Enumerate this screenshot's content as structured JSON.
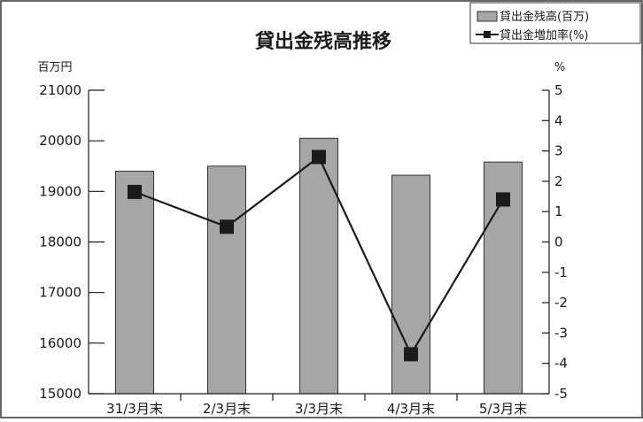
{
  "chart_data": {
    "type": "bar",
    "title": "貸出金残高推移",
    "categories": [
      "31/3月末",
      "2/3月末",
      "3/3月末",
      "4/3月末",
      "5/3月末"
    ],
    "series": [
      {
        "name": "貸出金残高(百万)",
        "type": "bar",
        "axis": "left",
        "values": [
          19400,
          19500,
          20050,
          19320,
          19580
        ],
        "color": "#a6a6a6"
      },
      {
        "name": "貸出金増加率(%)",
        "type": "line",
        "axis": "right",
        "values": [
          1.65,
          0.5,
          2.8,
          -3.7,
          1.4
        ],
        "color": "#1a1a1a"
      }
    ],
    "y_left": {
      "label": "百万円",
      "range": [
        15000,
        21000
      ],
      "ticks": [
        "15000",
        "16000",
        "17000",
        "18000",
        "19000",
        "20000",
        "21000"
      ]
    },
    "y_right": {
      "label": "%",
      "range": [
        -5,
        5
      ],
      "ticks": [
        "-5",
        "-4",
        "-3",
        "-2",
        "-1",
        "0",
        "1",
        "2",
        "3",
        "4",
        "5"
      ]
    },
    "legend_position": "top-right",
    "grid": false
  }
}
